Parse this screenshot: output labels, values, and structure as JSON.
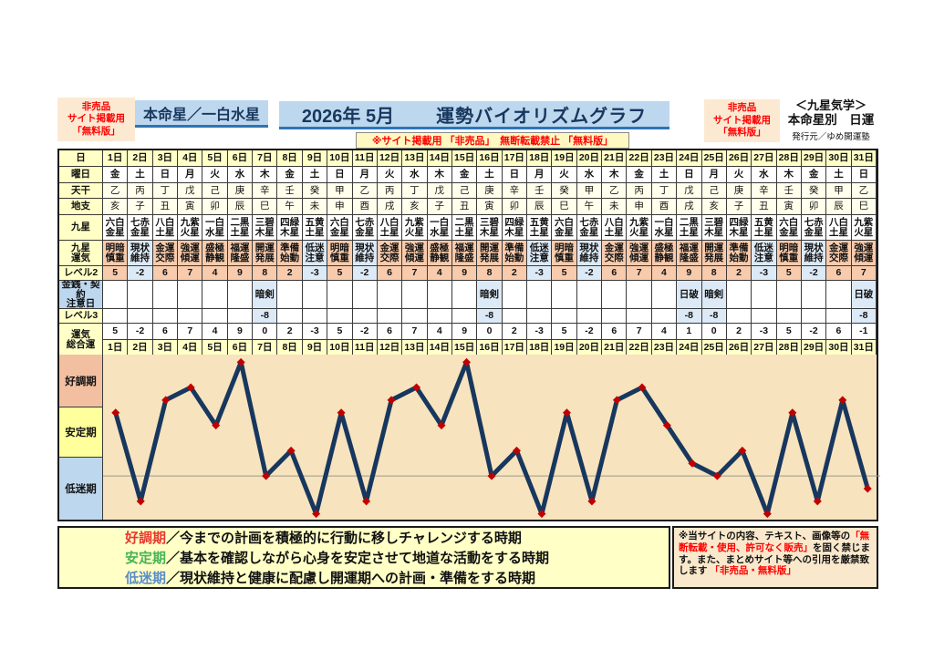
{
  "colors": {
    "accent_blue": "#BDD7EE",
    "accent_blue_dark": "#2E74B5",
    "navy": "#17375E",
    "yellow": "#FFFFC6",
    "cream": "#FFFFEC",
    "pink_cell": "#F8CBAD",
    "blue_cell": "#DCE9F6",
    "badge_bg": "#FCE9D2",
    "graph_bg": "#F7E3BE",
    "line": "#17375E",
    "marker": "#C00000",
    "red": "#FF0000",
    "zone_good": "#F2C0A0",
    "zone_stable": "#FFFF9C",
    "zone_low": "#BDD7EE"
  },
  "header": {
    "badge_left": [
      "非売品",
      "サイト掲載用",
      "「無料版」"
    ],
    "honmei": "本命星／一白水星",
    "year_month": "2026年 5月",
    "title": "運勢バイオリズムグラフ",
    "notice": "※サイト掲載用 「非売品」　無断転載禁止 「無料版」",
    "badge_right": [
      "非売品",
      "サイト掲載用",
      "「無料版」"
    ],
    "school": {
      "l1": "＜九星気学＞",
      "l2": "本命星別　日運",
      "l3": "発行元／ゆめ開運塾"
    }
  },
  "table": {
    "row_labels": {
      "day": "日",
      "yobi": "曜日",
      "tenkan": "天干",
      "chishi": "地支",
      "kyusei": "九星",
      "kyusei_unki": "九星\n運気",
      "level2": "レベル2",
      "kinsen": "金銭・契約\n注意日",
      "level3": "レベル3",
      "unki_sogo": "運気\n総合運"
    },
    "days": [
      "1日",
      "2日",
      "3日",
      "4日",
      "5日",
      "6日",
      "7日",
      "8日",
      "9日",
      "10日",
      "11日",
      "12日",
      "13日",
      "14日",
      "15日",
      "16日",
      "17日",
      "18日",
      "19日",
      "20日",
      "21日",
      "22日",
      "23日",
      "24日",
      "25日",
      "26日",
      "27日",
      "28日",
      "29日",
      "30日",
      "31日"
    ],
    "yobi": [
      "金",
      "土",
      "日",
      "月",
      "火",
      "水",
      "木",
      "金",
      "土",
      "日",
      "月",
      "火",
      "水",
      "木",
      "金",
      "土",
      "日",
      "月",
      "火",
      "水",
      "木",
      "金",
      "土",
      "日",
      "月",
      "火",
      "水",
      "木",
      "金",
      "土",
      "日"
    ],
    "tenkan": [
      "乙",
      "丙",
      "丁",
      "戊",
      "己",
      "庚",
      "辛",
      "壬",
      "癸",
      "甲",
      "乙",
      "丙",
      "丁",
      "戊",
      "己",
      "庚",
      "辛",
      "壬",
      "癸",
      "甲",
      "乙",
      "丙",
      "丁",
      "戊",
      "己",
      "庚",
      "辛",
      "壬",
      "癸",
      "甲",
      "乙"
    ],
    "chishi": [
      "亥",
      "子",
      "丑",
      "寅",
      "卯",
      "辰",
      "巳",
      "午",
      "未",
      "申",
      "酉",
      "戌",
      "亥",
      "子",
      "丑",
      "寅",
      "卯",
      "辰",
      "巳",
      "午",
      "未",
      "申",
      "酉",
      "戌",
      "亥",
      "子",
      "丑",
      "寅",
      "卯",
      "辰",
      "巳"
    ],
    "kyusei": [
      "六白\n金星",
      "七赤\n金星",
      "八白\n土星",
      "九紫\n火星",
      "一白\n水星",
      "二黒\n土星",
      "三碧\n木星",
      "四緑\n木星",
      "五黄\n土星",
      "六白\n金星",
      "七赤\n金星",
      "八白\n土星",
      "九紫\n火星",
      "一白\n水星",
      "二黒\n土星",
      "三碧\n木星",
      "四緑\n木星",
      "五黄\n土星",
      "六白\n金星",
      "七赤\n金星",
      "八白\n土星",
      "九紫\n火星",
      "一白\n水星",
      "二黒\n土星",
      "三碧\n木星",
      "四緑\n木星",
      "五黄\n土星",
      "六白\n金星",
      "七赤\n金星",
      "八白\n土星",
      "九紫\n火星"
    ],
    "kyusei_unki": [
      "明暗\n慎重",
      "現状\n維持",
      "金運\n交際",
      "強運\n傾運",
      "盛極\n静観",
      "福運\n隆盛",
      "開運\n発展",
      "準備\n始動",
      "低迷\n注意",
      "明暗\n慎重",
      "現状\n維持",
      "金運\n交際",
      "強運\n傾運",
      "盛極\n静観",
      "福運\n隆盛",
      "開運\n発展",
      "準備\n始動",
      "低迷\n注意",
      "明暗\n慎重",
      "現状\n維持",
      "金運\n交際",
      "強運\n傾運",
      "盛極\n静観",
      "福運\n隆盛",
      "開運\n発展",
      "準備\n始動",
      "低迷\n注意",
      "明暗\n慎重",
      "現状\n維持",
      "金運\n交際",
      "強運\n傾運"
    ],
    "kyusei_unki_blue": [
      false,
      true,
      false,
      false,
      false,
      false,
      false,
      false,
      true,
      false,
      true,
      false,
      false,
      false,
      false,
      false,
      false,
      true,
      false,
      true,
      false,
      false,
      false,
      false,
      false,
      false,
      true,
      false,
      true,
      false,
      false
    ],
    "level2": [
      5,
      -2,
      6,
      7,
      4,
      9,
      8,
      2,
      -3,
      5,
      -2,
      6,
      7,
      4,
      9,
      8,
      2,
      -3,
      5,
      -2,
      6,
      7,
      4,
      9,
      8,
      2,
      -3,
      5,
      -2,
      6,
      7
    ],
    "kinsen": [
      "",
      "",
      "",
      "",
      "",
      "",
      "暗剣",
      "",
      "",
      "",
      "",
      "",
      "",
      "",
      "",
      "暗剣",
      "",
      "",
      "",
      "",
      "",
      "",
      "",
      "日破",
      "暗剣",
      "",
      "",
      "",
      "",
      "",
      "日破"
    ],
    "level3": [
      "",
      "",
      "",
      "",
      "",
      "",
      "-8",
      "",
      "",
      "",
      "",
      "",
      "",
      "",
      "",
      "-8",
      "",
      "",
      "",
      "",
      "",
      "",
      "",
      "-8",
      "-8",
      "",
      "",
      "",
      "",
      "",
      "-8"
    ],
    "sogo": [
      5,
      -2,
      6,
      7,
      4,
      9,
      0,
      2,
      -3,
      5,
      -2,
      6,
      7,
      4,
      9,
      0,
      2,
      -3,
      5,
      -2,
      6,
      7,
      4,
      1,
      0,
      2,
      -3,
      5,
      -2,
      6,
      -1
    ]
  },
  "chart_data": {
    "type": "line",
    "title": "運勢バイオリズムグラフ",
    "period": "2026年 5月",
    "series_name": "運気総合運",
    "x": [
      1,
      2,
      3,
      4,
      5,
      6,
      7,
      8,
      9,
      10,
      11,
      12,
      13,
      14,
      15,
      16,
      17,
      18,
      19,
      20,
      21,
      22,
      23,
      24,
      25,
      26,
      27,
      28,
      29,
      30,
      31
    ],
    "values": [
      5,
      -2,
      6,
      7,
      4,
      9,
      0,
      2,
      -3,
      5,
      -2,
      6,
      7,
      4,
      9,
      0,
      2,
      -3,
      5,
      -2,
      6,
      7,
      4,
      1,
      0,
      2,
      -3,
      5,
      -2,
      6,
      -1
    ],
    "ylim": [
      -3.6,
      9.6
    ],
    "zero_line": true,
    "grid": false,
    "zones": [
      {
        "label": "好調期",
        "approx_range": [
          5.4,
          9.6
        ]
      },
      {
        "label": "安定期",
        "approx_range": [
          1.4,
          5.4
        ]
      },
      {
        "label": "低迷期",
        "approx_range": [
          -3.6,
          1.4
        ]
      }
    ],
    "line_color": "#17375E",
    "marker": {
      "shape": "diamond",
      "color": "#C00000"
    }
  },
  "graph": {
    "bands": [
      {
        "label": "好調期",
        "color": "#F2C0A0"
      },
      {
        "label": "安定期",
        "color": "#FFFF9C"
      },
      {
        "label": "低迷期",
        "color": "#BDD7EE"
      }
    ]
  },
  "legend": {
    "lines": [
      {
        "term": "好調期",
        "color": "#E8392E",
        "rest": "／今までの計画を積極的に行動に移しチャレンジする時期"
      },
      {
        "term": "安定期",
        "color": "#45B554",
        "rest": "／基本を確認しながら心身を安定させて地道な活動をする時期"
      },
      {
        "term": "低迷期",
        "color": "#5B8DC8",
        "rest": "／現状維持と健康に配慮し開運期への計画・準備をする時期"
      }
    ]
  },
  "copyright": {
    "segments": [
      {
        "t": "※当サイトの内容、テキスト、画像等の",
        "red": false
      },
      {
        "t": "「無断転載・使用、許可なく販売」",
        "red": true
      },
      {
        "t": "を固く禁じます。また、まとめサイト等への引用を厳禁致します ",
        "red": false
      },
      {
        "t": "「非売品・無料版」",
        "red": true
      }
    ]
  }
}
